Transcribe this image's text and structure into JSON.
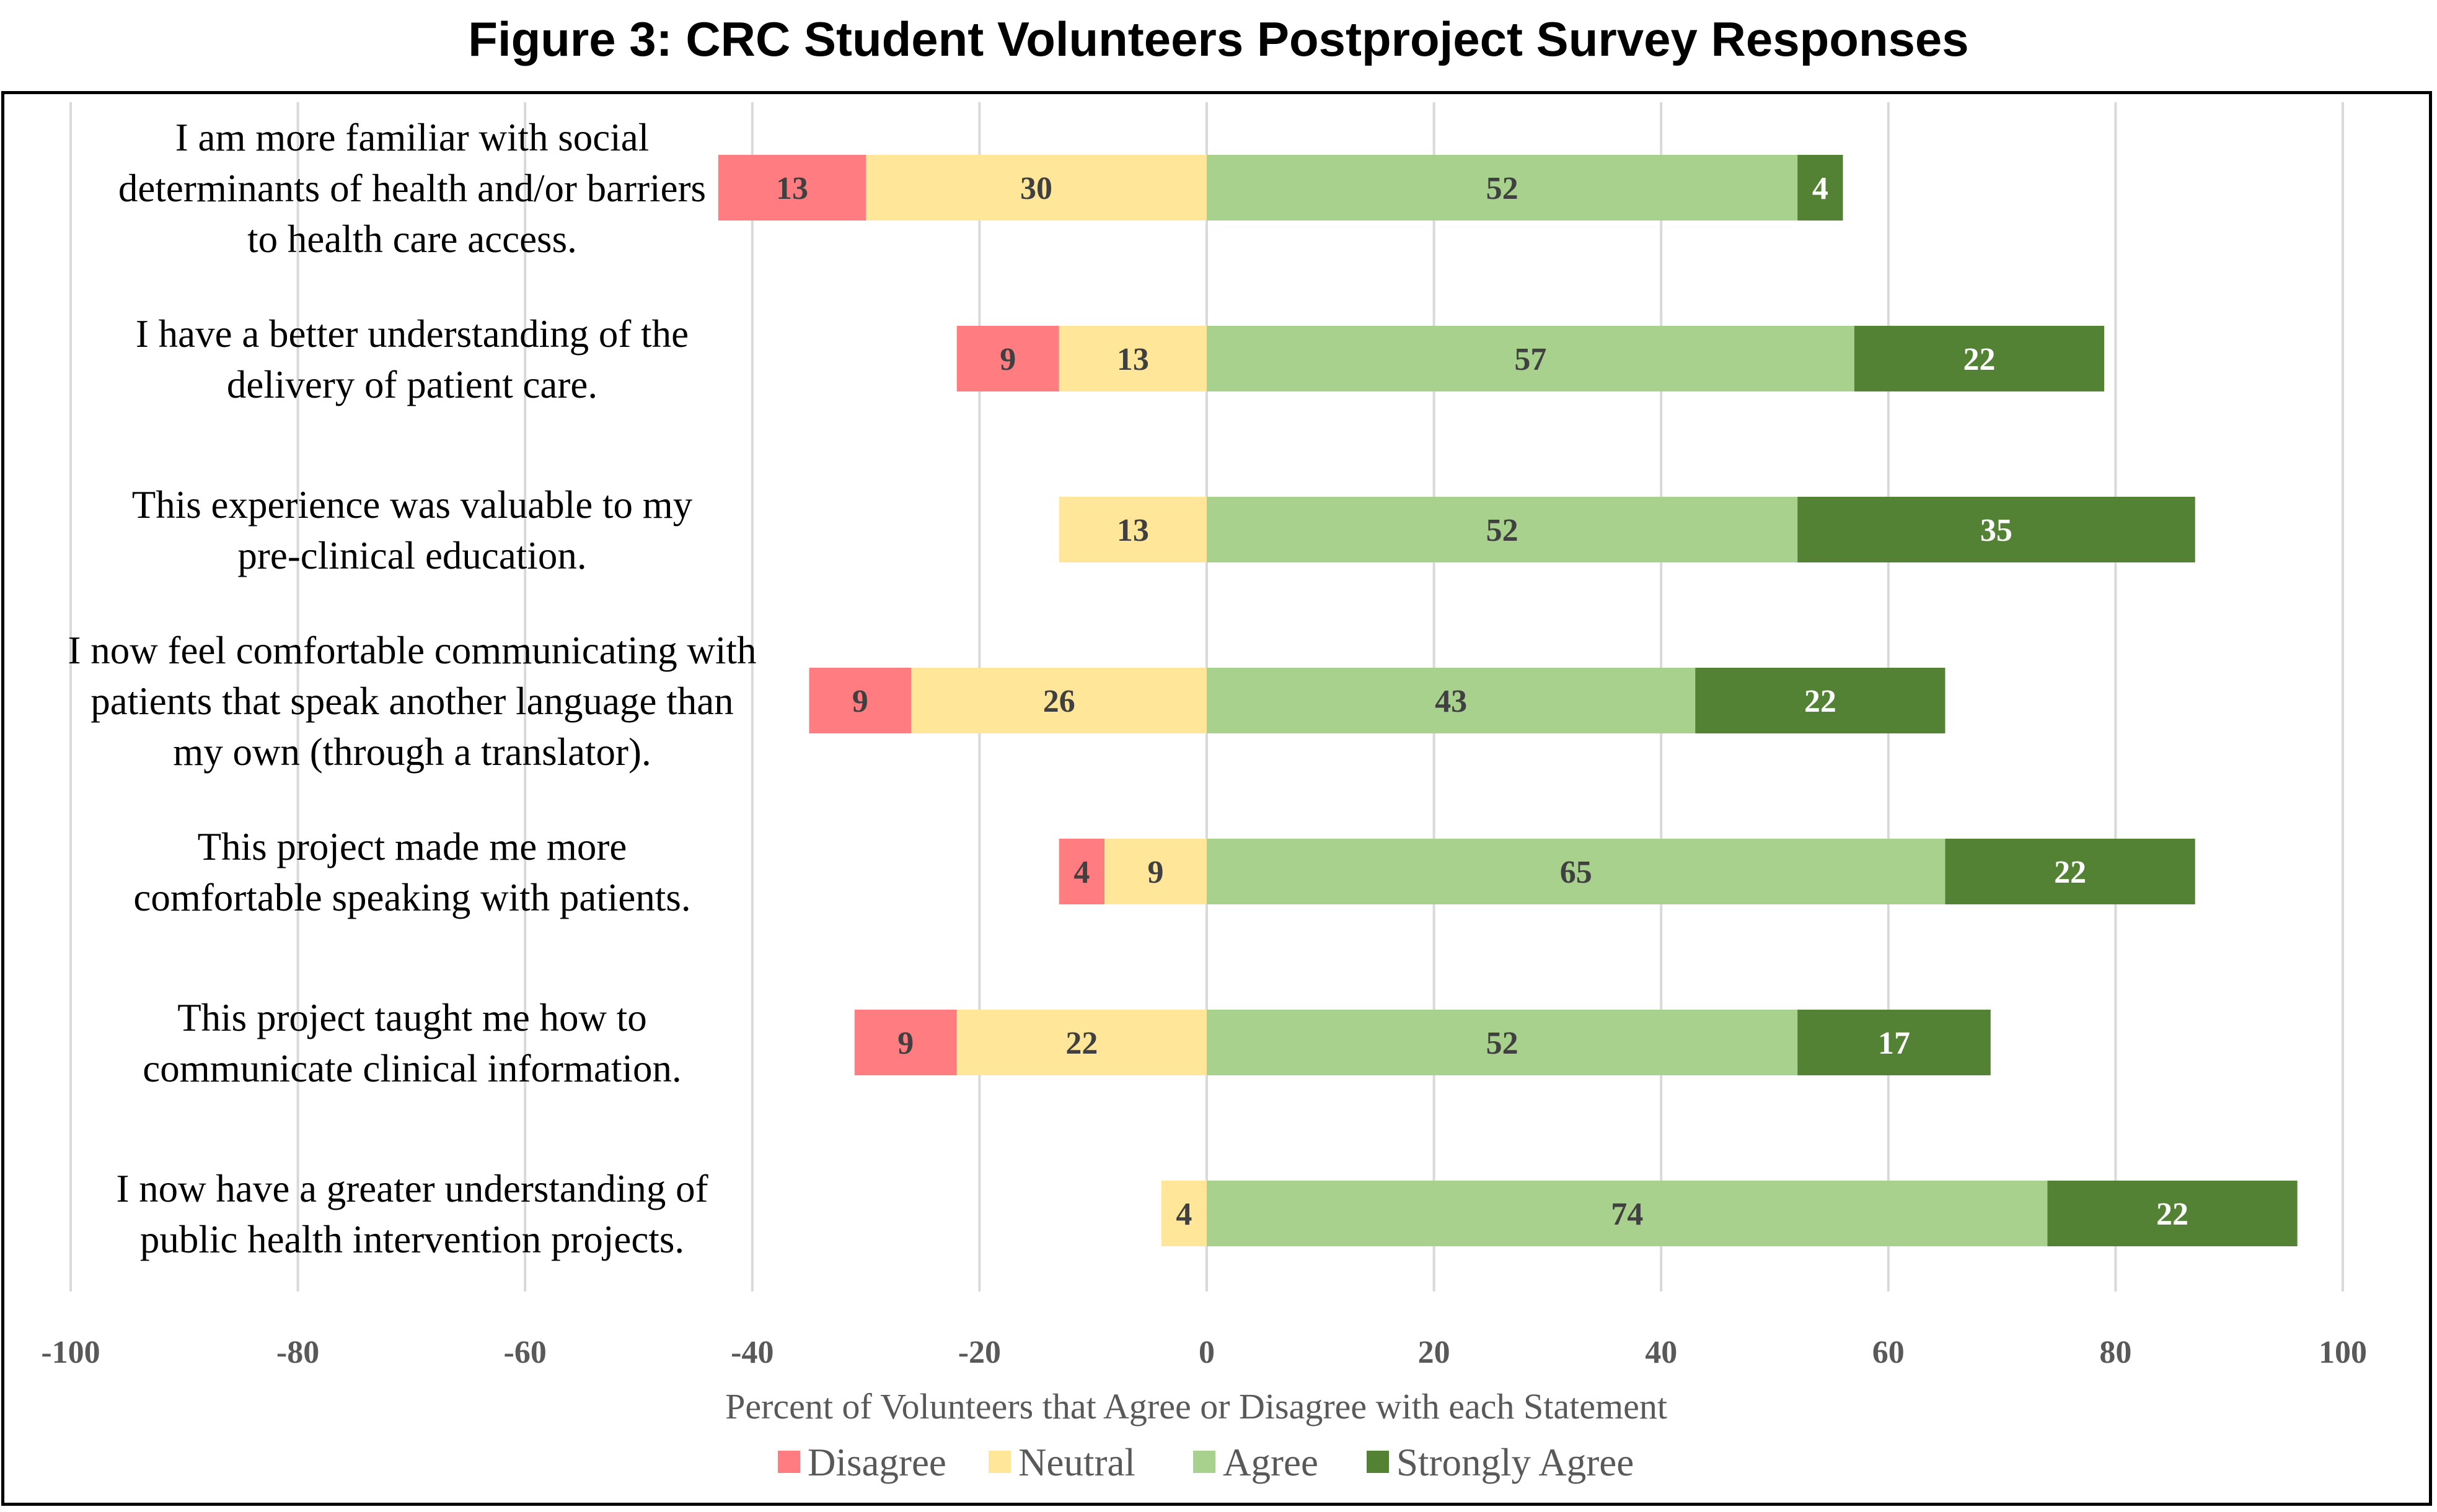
{
  "title": "Figure 3: CRC Student Volunteers Postproject Survey Responses",
  "chart_data": {
    "type": "bar",
    "orientation": "horizontal",
    "stacked": true,
    "diverging": true,
    "xlabel": "Percent of Volunteers that Agree or Disagree with each Statement",
    "ylabel": "",
    "xlim": [
      -100,
      100
    ],
    "xticks": [
      -100,
      -80,
      -60,
      -40,
      -20,
      0,
      20,
      40,
      60,
      80,
      100
    ],
    "grid": "vertical",
    "legend_position": "bottom",
    "categories": [
      [
        "I am more familiar with social",
        "determinants of health and/or barriers",
        "to health care access."
      ],
      [
        "I have a better understanding of the",
        "delivery of patient care."
      ],
      [
        "This experience was valuable to my",
        "pre-clinical education."
      ],
      [
        "I now feel comfortable communicating with",
        "patients that speak another language than",
        "my own (through a translator)."
      ],
      [
        "This project made me more",
        "comfortable speaking with patients."
      ],
      [
        "This project taught me how to",
        "communicate clinical information."
      ],
      [
        "I now have a greater understanding of",
        "public health intervention projects."
      ]
    ],
    "series": [
      {
        "name": "Disagree",
        "color": "#ff7c80",
        "values": [
          13,
          9,
          0,
          9,
          4,
          9,
          0
        ]
      },
      {
        "name": "Neutral",
        "color": "#ffe699",
        "values": [
          30,
          13,
          13,
          26,
          9,
          22,
          4
        ]
      },
      {
        "name": "Agree",
        "color": "#a9d18e",
        "values": [
          52,
          57,
          52,
          43,
          65,
          52,
          74
        ]
      },
      {
        "name": "Strongly Agree",
        "color": "#548235",
        "values": [
          4,
          22,
          35,
          22,
          22,
          17,
          22
        ]
      }
    ]
  }
}
